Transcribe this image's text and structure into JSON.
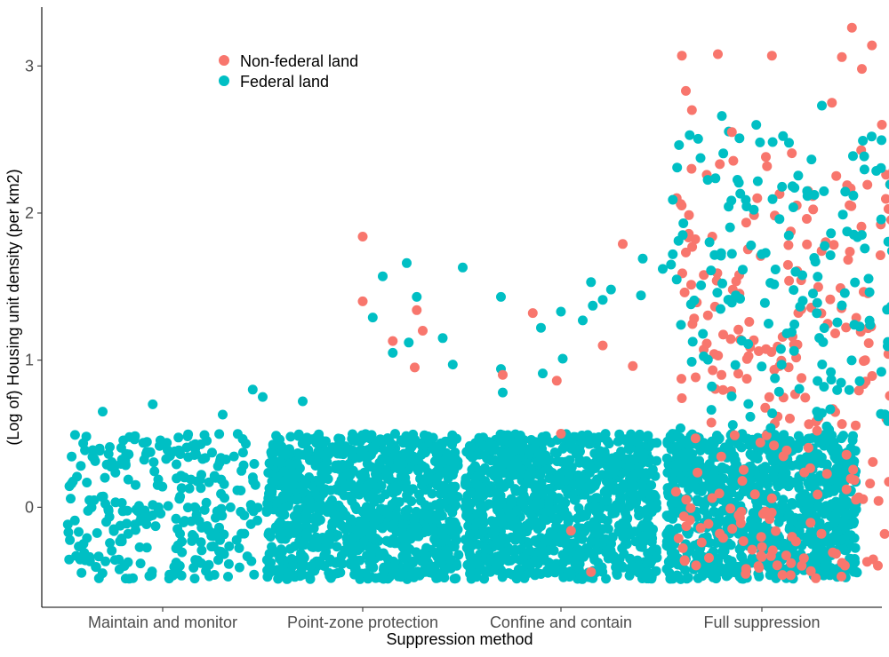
{
  "chart_data": {
    "type": "scatter",
    "jitter": true,
    "title": "",
    "xlabel": "Suppression method",
    "ylabel": "(Log of) Housing unit density (per km2)",
    "categories": [
      "Maintain and monitor",
      "Point-zone protection",
      "Confine and contain",
      "Full suppression"
    ],
    "ylim": [
      -0.68,
      3.4
    ],
    "yticks": [
      0,
      1,
      2,
      3
    ],
    "grid": false,
    "legend_position": "top-left",
    "series": [
      {
        "name": "Non-federal land",
        "color": "#F8766D",
        "points": [
          {
            "category": "Point-zone protection",
            "offset": 0.0,
            "y": 1.84
          },
          {
            "category": "Point-zone protection",
            "offset": 0.0,
            "y": 1.4
          },
          {
            "category": "Point-zone protection",
            "offset": 0.15,
            "y": 1.13
          },
          {
            "category": "Point-zone protection",
            "offset": 0.27,
            "y": 1.34
          },
          {
            "category": "Point-zone protection",
            "offset": 0.3,
            "y": 1.2
          },
          {
            "category": "Point-zone protection",
            "offset": 0.26,
            "y": 0.95
          },
          {
            "category": "Point-zone protection",
            "offset": 0.7,
            "y": 0.9
          },
          {
            "category": "Point-zone protection",
            "offset": 0.85,
            "y": 1.32
          },
          {
            "category": "Point-zone protection",
            "offset": 0.97,
            "y": 0.86
          },
          {
            "category": "Point-zone protection",
            "offset": 1.2,
            "y": 1.1
          },
          {
            "category": "Point-zone protection",
            "offset": 1.3,
            "y": 1.79
          },
          {
            "category": "Point-zone protection",
            "offset": 1.35,
            "y": 0.96
          },
          {
            "category": "Confine and contain",
            "offset": 0.0,
            "y": 0.5
          },
          {
            "category": "Confine and contain",
            "offset": 0.05,
            "y": -0.16
          },
          {
            "category": "Confine and contain",
            "offset": 0.15,
            "y": -0.44
          },
          {
            "category": "Confine and contain",
            "offset": 1.0,
            "y": -0.33
          },
          {
            "category": "Confine and contain",
            "offset": 1.15,
            "y": -0.38
          },
          {
            "category": "Full suppression",
            "offset": -0.4,
            "y": 3.07
          },
          {
            "category": "Full suppression",
            "offset": -0.22,
            "y": 3.08
          },
          {
            "category": "Full suppression",
            "offset": 0.45,
            "y": 3.26
          },
          {
            "category": "Full suppression",
            "offset": 0.55,
            "y": 3.14
          },
          {
            "category": "Full suppression",
            "offset": 0.05,
            "y": 3.07
          },
          {
            "category": "Full suppression",
            "offset": 0.85,
            "y": 3.27
          },
          {
            "category": "Full suppression",
            "offset": 0.4,
            "y": 3.06
          },
          {
            "category": "Full suppression",
            "offset": 0.5,
            "y": 2.98
          },
          {
            "category": "Full suppression",
            "offset": 0.8,
            "y": 2.85
          },
          {
            "category": "Full suppression",
            "offset": -0.35,
            "y": 2.7
          },
          {
            "category": "Full suppression",
            "offset": 0.35,
            "y": 2.75
          },
          {
            "category": "Full suppression",
            "offset": -0.38,
            "y": 2.83
          },
          {
            "category": "Full suppression",
            "offset": 0.6,
            "y": 2.6
          },
          {
            "category": "Full suppression",
            "offset": -0.15,
            "y": 2.55
          },
          {
            "category": "Full suppression",
            "offset": 0.9,
            "y": 2.38
          },
          {
            "category": "Full suppression",
            "offset": 0.8,
            "y": 1.99
          },
          {
            "category": "Full suppression",
            "offset": 0.9,
            "y": 1.63
          }
        ],
        "clusters": [
          {
            "category": "Full suppression",
            "x_range": [
              -0.43,
              0.92
            ],
            "y_range": [
              0.5,
              2.45
            ],
            "count": 190
          },
          {
            "category": "Full suppression",
            "x_range": [
              -0.43,
              0.92
            ],
            "y_range": [
              -0.49,
              0.5
            ],
            "count": 110
          }
        ]
      },
      {
        "name": "Federal land",
        "color": "#00BFC4",
        "points": [
          {
            "category": "Maintain and monitor",
            "offset": -0.3,
            "y": 0.65
          },
          {
            "category": "Maintain and monitor",
            "offset": -0.05,
            "y": 0.7
          },
          {
            "category": "Maintain and monitor",
            "offset": 0.3,
            "y": 0.63
          },
          {
            "category": "Maintain and monitor",
            "offset": 0.45,
            "y": 0.8
          },
          {
            "category": "Maintain and monitor",
            "offset": 0.5,
            "y": 0.75
          },
          {
            "category": "Point-zone protection",
            "offset": -0.3,
            "y": 0.72
          },
          {
            "category": "Point-zone protection",
            "offset": 0.15,
            "y": 1.05
          },
          {
            "category": "Point-zone protection",
            "offset": 0.22,
            "y": 1.66
          },
          {
            "category": "Point-zone protection",
            "offset": 0.1,
            "y": 1.57
          },
          {
            "category": "Point-zone protection",
            "offset": 0.5,
            "y": 1.63
          },
          {
            "category": "Point-zone protection",
            "offset": 0.05,
            "y": 1.29
          },
          {
            "category": "Point-zone protection",
            "offset": 0.27,
            "y": 1.43
          },
          {
            "category": "Point-zone protection",
            "offset": 0.4,
            "y": 1.15
          },
          {
            "category": "Point-zone protection",
            "offset": 0.23,
            "y": 1.12
          },
          {
            "category": "Point-zone protection",
            "offset": 0.45,
            "y": 0.97
          },
          {
            "category": "Point-zone protection",
            "offset": 0.7,
            "y": 0.78
          },
          {
            "category": "Point-zone protection",
            "offset": 0.9,
            "y": 0.91
          },
          {
            "category": "Point-zone protection",
            "offset": 1.0,
            "y": 1.01
          },
          {
            "category": "Point-zone protection",
            "offset": 1.1,
            "y": 1.27
          },
          {
            "category": "Point-zone protection",
            "offset": 1.15,
            "y": 1.37
          },
          {
            "category": "Point-zone protection",
            "offset": 1.2,
            "y": 1.41
          },
          {
            "category": "Point-zone protection",
            "offset": 1.4,
            "y": 1.69
          },
          {
            "category": "Point-zone protection",
            "offset": 1.5,
            "y": 1.62
          },
          {
            "category": "Point-zone protection",
            "offset": 1.55,
            "y": 2.09
          },
          {
            "category": "Point-zone protection",
            "offset": 1.6,
            "y": 1.85
          },
          {
            "category": "Point-zone protection",
            "offset": 1.55,
            "y": 1.72
          },
          {
            "category": "Confine and contain",
            "offset": -0.3,
            "y": 1.43
          },
          {
            "category": "Confine and contain",
            "offset": -0.3,
            "y": 0.94
          },
          {
            "category": "Confine and contain",
            "offset": -0.1,
            "y": 1.22
          },
          {
            "category": "Confine and contain",
            "offset": 0.0,
            "y": 1.33
          },
          {
            "category": "Confine and contain",
            "offset": 0.15,
            "y": 1.53
          },
          {
            "category": "Confine and contain",
            "offset": 0.25,
            "y": 1.48
          },
          {
            "category": "Confine and contain",
            "offset": 0.4,
            "y": 1.44
          },
          {
            "category": "Confine and contain",
            "offset": 0.55,
            "y": 1.65
          },
          {
            "category": "Confine and contain",
            "offset": 0.6,
            "y": 1.24
          },
          {
            "category": "Confine and contain",
            "offset": 0.65,
            "y": 1.38
          },
          {
            "category": "Confine and contain",
            "offset": 0.75,
            "y": 1.61
          },
          {
            "category": "Confine and contain",
            "offset": 0.8,
            "y": 1.71
          },
          {
            "category": "Confine and contain",
            "offset": 0.95,
            "y": 1.78
          },
          {
            "category": "Full suppression",
            "offset": -0.2,
            "y": 2.66
          },
          {
            "category": "Full suppression",
            "offset": 0.3,
            "y": 2.73
          },
          {
            "category": "Full suppression",
            "offset": 0.75,
            "y": 2.67
          },
          {
            "category": "Full suppression",
            "offset": 0.9,
            "y": 2.54
          },
          {
            "category": "Full suppression",
            "offset": 0.92,
            "y": 2.18
          }
        ],
        "clusters": [
          {
            "category": "Maintain and monitor",
            "x_range": [
              -0.48,
              0.48
            ],
            "y_range": [
              -0.49,
              0.5
            ],
            "count": 280
          },
          {
            "category": "Point-zone protection",
            "x_range": [
              -0.48,
              0.48
            ],
            "y_range": [
              -0.49,
              0.5
            ],
            "count": 1000
          },
          {
            "category": "Confine and contain",
            "x_range": [
              -0.48,
              0.48
            ],
            "y_range": [
              -0.49,
              0.5
            ],
            "count": 1000
          },
          {
            "category": "Full suppression",
            "x_range": [
              -0.48,
              0.48
            ],
            "y_range": [
              -0.49,
              0.5
            ],
            "count": 950
          },
          {
            "category": "Full suppression",
            "x_range": [
              -0.43,
              0.92
            ],
            "y_range": [
              0.5,
              2.6
            ],
            "count": 200
          }
        ]
      }
    ]
  }
}
